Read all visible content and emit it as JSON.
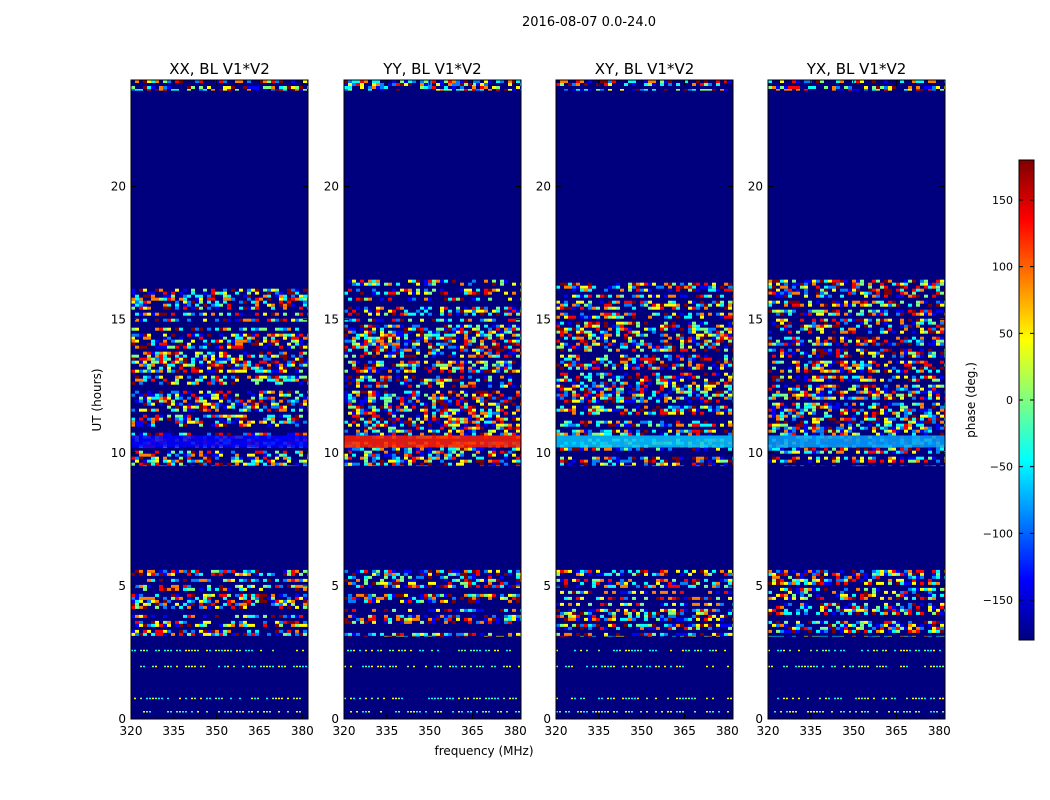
{
  "figure": {
    "title": "2016-08-07 0.0-24.0"
  },
  "chart_data": {
    "type": "heatmap",
    "panels": [
      {
        "title": "XX, BL V1*V2",
        "pol": "XX",
        "band_10_4_color": "#0000ff"
      },
      {
        "title": "YY, BL V1*V2",
        "pol": "YY",
        "band_10_4_color": "#ff2000"
      },
      {
        "title": "XY, BL V1*V2",
        "pol": "XY",
        "band_10_4_color": "#00c8ff"
      },
      {
        "title": "YX, BL V1*V2",
        "pol": "YX",
        "band_10_4_color": "#00a0ff"
      }
    ],
    "xlabel": "frequency (MHz)",
    "ylabel": "UT (hours)",
    "xlim": [
      320,
      382
    ],
    "ylim": [
      0,
      24
    ],
    "xticks": [
      320,
      335,
      350,
      365,
      380
    ],
    "xtick_labels": [
      "320",
      "335",
      "350",
      "365",
      "380"
    ],
    "yticks": [
      0,
      5,
      10,
      15,
      20
    ],
    "ytick_labels": [
      "0",
      "5",
      "10",
      "15",
      "20"
    ],
    "noise_bands_hours": [
      [
        3.1,
        5.6
      ],
      [
        9.5,
        16.5
      ],
      [
        23.6,
        24.0
      ]
    ],
    "thin_lines_hours": [
      0.3,
      0.8,
      2.0,
      2.6
    ],
    "colorbar": {
      "label": "phase (deg.)",
      "range": [
        -180,
        180
      ],
      "ticks": [
        150,
        100,
        50,
        0,
        -50,
        -100,
        -150
      ],
      "tick_labels": [
        "150",
        "100",
        "50",
        "0",
        "−50",
        "−100",
        "−150"
      ],
      "colormap": "jet"
    }
  },
  "colors": {
    "background_phase": "#00007f",
    "jet": [
      "#00007f",
      "#0000ff",
      "#007fff",
      "#00ffff",
      "#7fff7f",
      "#ffff00",
      "#ff7f00",
      "#ff0000",
      "#7f0000"
    ]
  }
}
